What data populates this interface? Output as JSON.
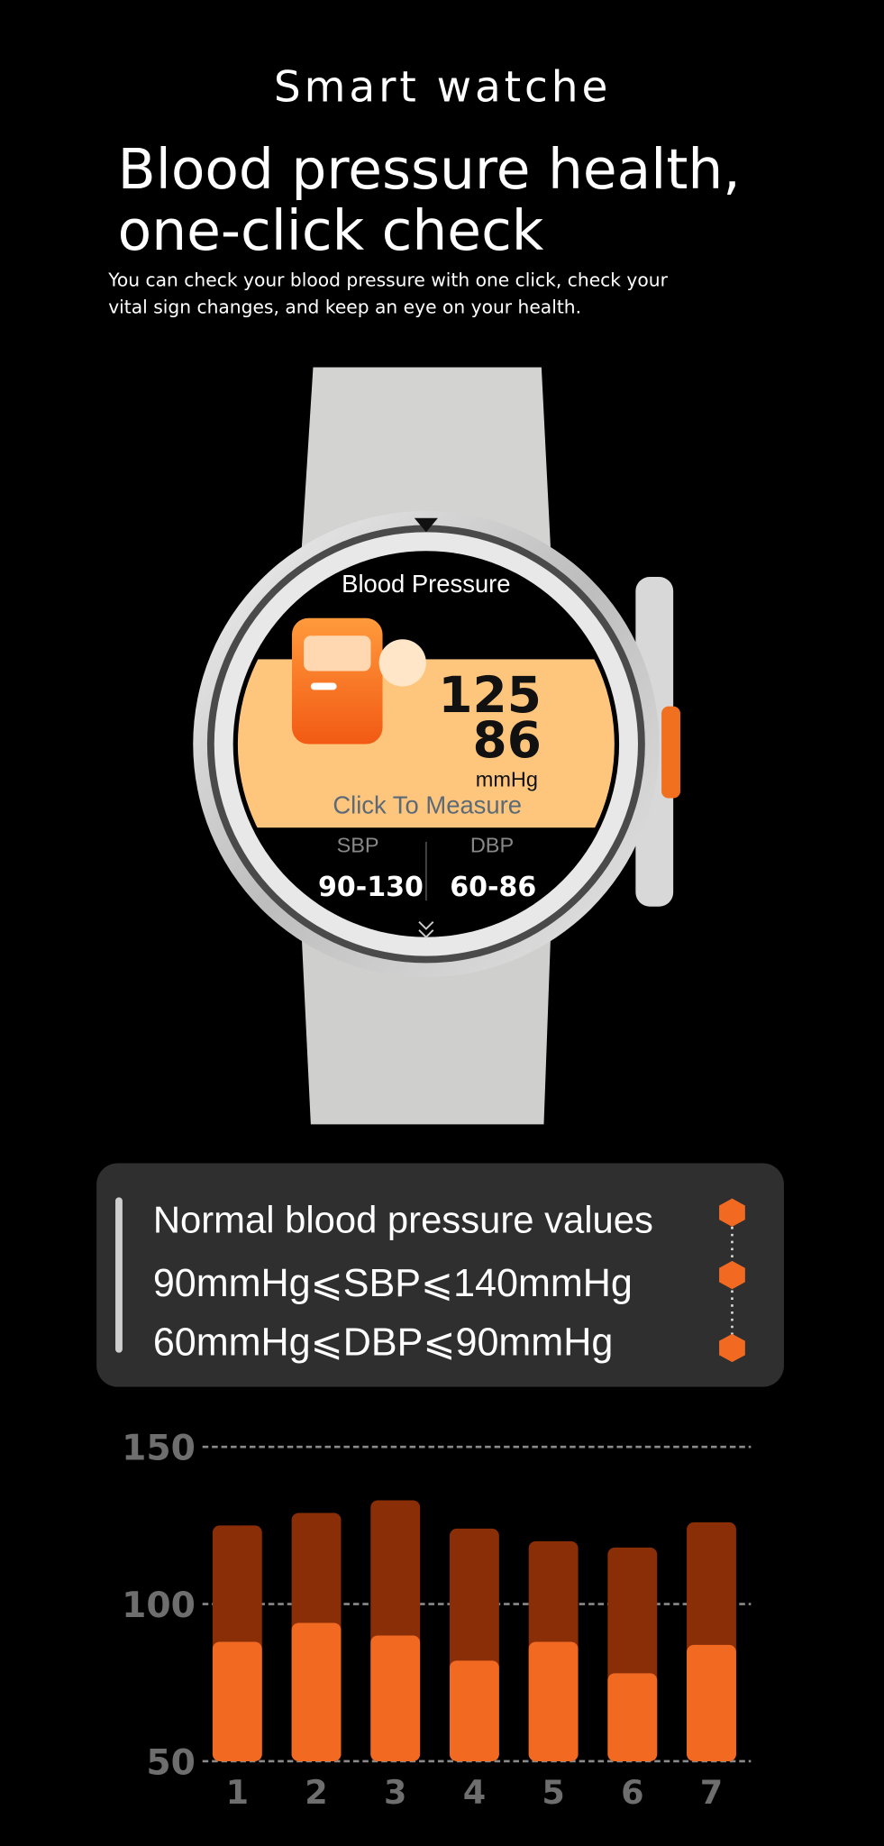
{
  "header": {
    "brand": "Smart watche",
    "title_lines": [
      "Blood pressure health,",
      "one-click check"
    ],
    "subtitle_lines": [
      "You can check your blood pressure with one click, check your",
      "vital sign changes, and keep an eye on your health."
    ]
  },
  "watch": {
    "screen_title": "Blood Pressure",
    "systolic": 125,
    "diastolic": 86,
    "unit": "mmHg",
    "action": "Click To Measure",
    "sbp_label": "SBP",
    "dbp_label": "DBP",
    "sbp_range": "90-130",
    "dbp_range": "60-86"
  },
  "info_box": {
    "title": "Normal blood pressure values",
    "lines": [
      "90mmHg⩽SBP⩽140mmHg",
      "60mmHg⩽DBP⩽90mmHg"
    ]
  },
  "chart_data": {
    "type": "bar",
    "categories": [
      "1",
      "2",
      "3",
      "4",
      "5",
      "6",
      "7"
    ],
    "series": [
      {
        "color": "#8a2e08",
        "values": [
          125,
          129,
          133,
          124,
          120,
          118,
          126
        ]
      },
      {
        "color": "#f26a22",
        "values": [
          88,
          94,
          90,
          82,
          88,
          78,
          87
        ]
      }
    ],
    "ylim": [
      50,
      150
    ],
    "yticks": [
      50,
      100,
      150
    ],
    "grid": true
  }
}
